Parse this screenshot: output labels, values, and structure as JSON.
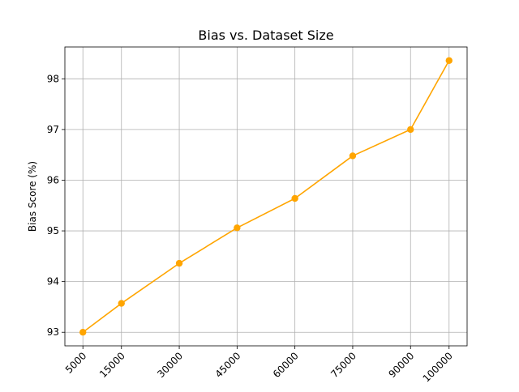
{
  "chart_data": {
    "type": "line",
    "title": "Bias vs. Dataset Size",
    "xlabel": "",
    "ylabel": "Bias Score (%)",
    "x": [
      5000,
      15000,
      30000,
      45000,
      60000,
      75000,
      90000,
      100000
    ],
    "x_tick_labels": [
      "5000",
      "15000",
      "30000",
      "45000",
      "60000",
      "75000",
      "90000",
      "100000"
    ],
    "series": [
      {
        "values": [
          93.0,
          93.57,
          94.36,
          95.06,
          95.64,
          96.48,
          97.0,
          98.36
        ]
      }
    ],
    "y_ticks": [
      93,
      94,
      95,
      96,
      97,
      98
    ],
    "y_tick_labels": [
      "93",
      "94",
      "95",
      "96",
      "97",
      "98"
    ],
    "xlim": [
      325,
      104675
    ],
    "ylim": [
      92.732,
      98.628
    ],
    "grid": true,
    "colors": {
      "line": "#ffa500",
      "grid": "#b0b0b0",
      "axes": "#000000"
    }
  }
}
